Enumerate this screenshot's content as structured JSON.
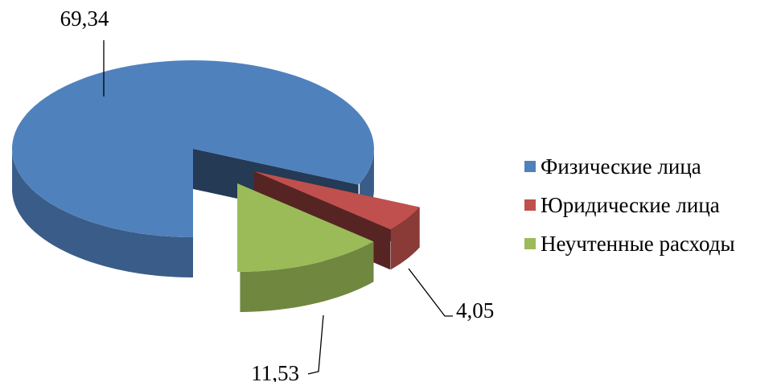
{
  "chart_data": {
    "type": "pie",
    "title": "",
    "slices": [
      {
        "label": "Физические лица",
        "value": 69.34,
        "value_label": "69,34",
        "color": "#4F81BD"
      },
      {
        "label": "Юридические лица",
        "value": 4.05,
        "value_label": "4,05",
        "color": "#C0504D"
      },
      {
        "label": "Неучтенные расходы",
        "value": 11.53,
        "value_label": "11,53",
        "color": "#9BBB59"
      }
    ],
    "legend_position": "right",
    "style": "3d-exploded"
  }
}
